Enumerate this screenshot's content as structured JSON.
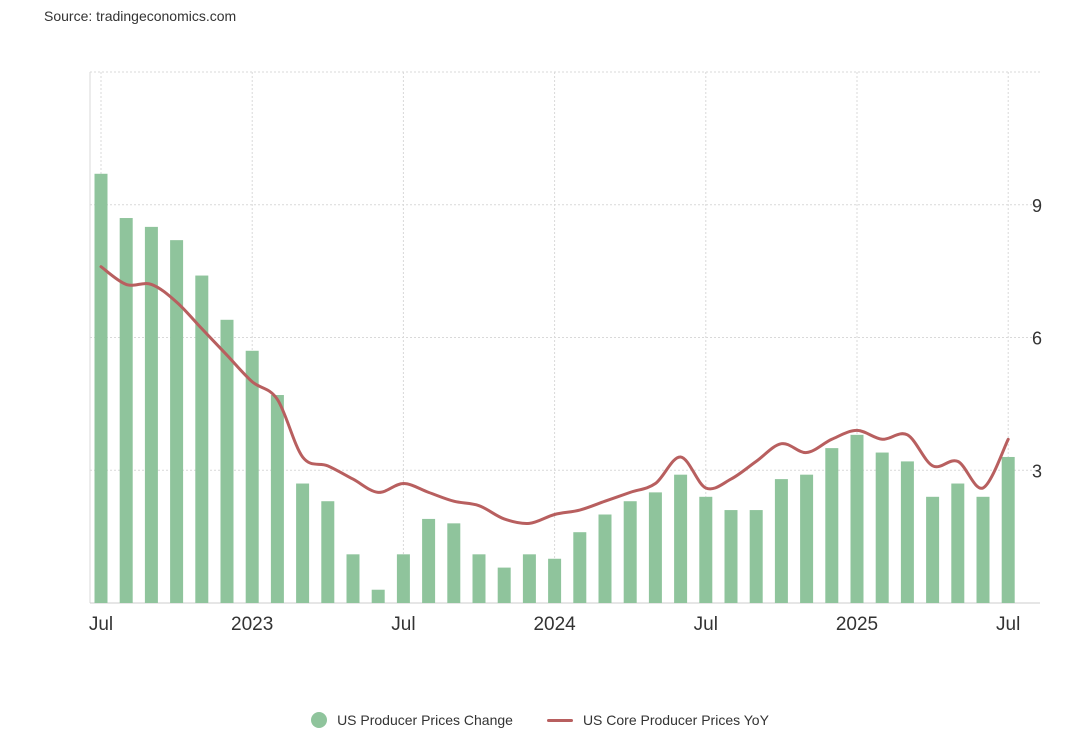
{
  "source": "Source: tradingeconomics.com",
  "colors": {
    "bar": "#8fc49c",
    "line": "#b85f5f",
    "grid": "#d9d9d9",
    "axis_text": "#333333"
  },
  "chart_data": {
    "type": "bar",
    "x": [
      "2022-07",
      "2022-08",
      "2022-09",
      "2022-10",
      "2022-11",
      "2022-12",
      "2023-01",
      "2023-02",
      "2023-03",
      "2023-04",
      "2023-05",
      "2023-06",
      "2023-07",
      "2023-08",
      "2023-09",
      "2023-10",
      "2023-11",
      "2023-12",
      "2024-01",
      "2024-02",
      "2024-03",
      "2024-04",
      "2024-05",
      "2024-06",
      "2024-07",
      "2024-08",
      "2024-09",
      "2024-10",
      "2024-11",
      "2024-12",
      "2025-01",
      "2025-02",
      "2025-03",
      "2025-04",
      "2025-05",
      "2025-06",
      "2025-07"
    ],
    "x_tick_labels": [
      {
        "x": "2022-07",
        "label": "Jul"
      },
      {
        "x": "2023-01",
        "label": "2023"
      },
      {
        "x": "2023-07",
        "label": "Jul"
      },
      {
        "x": "2024-01",
        "label": "2024"
      },
      {
        "x": "2024-07",
        "label": "Jul"
      },
      {
        "x": "2025-01",
        "label": "2025"
      },
      {
        "x": "2025-07",
        "label": "Jul"
      }
    ],
    "y_ticks": [
      3,
      6,
      9
    ],
    "ylim": [
      0,
      12
    ],
    "grid": true,
    "legend_position": "bottom",
    "series": [
      {
        "name": "US Producer Prices Change",
        "type": "bar",
        "values": [
          9.7,
          8.7,
          8.5,
          8.2,
          7.4,
          6.4,
          5.7,
          4.7,
          2.7,
          2.3,
          1.1,
          0.3,
          1.1,
          1.9,
          1.8,
          1.1,
          0.8,
          1.1,
          1.0,
          1.6,
          2.0,
          2.3,
          2.5,
          2.9,
          2.4,
          2.1,
          2.1,
          2.8,
          2.9,
          3.5,
          3.8,
          3.4,
          3.2,
          2.4,
          2.7,
          2.4,
          3.3
        ]
      },
      {
        "name": "US Core Producer Prices YoY",
        "type": "line",
        "values": [
          7.6,
          7.2,
          7.2,
          6.8,
          6.2,
          5.6,
          5.0,
          4.6,
          3.3,
          3.1,
          2.8,
          2.5,
          2.7,
          2.5,
          2.3,
          2.2,
          1.9,
          1.8,
          2.0,
          2.1,
          2.3,
          2.5,
          2.7,
          3.3,
          2.6,
          2.8,
          3.2,
          3.6,
          3.4,
          3.7,
          3.9,
          3.7,
          3.8,
          3.1,
          3.2,
          2.6,
          3.7
        ]
      }
    ]
  }
}
